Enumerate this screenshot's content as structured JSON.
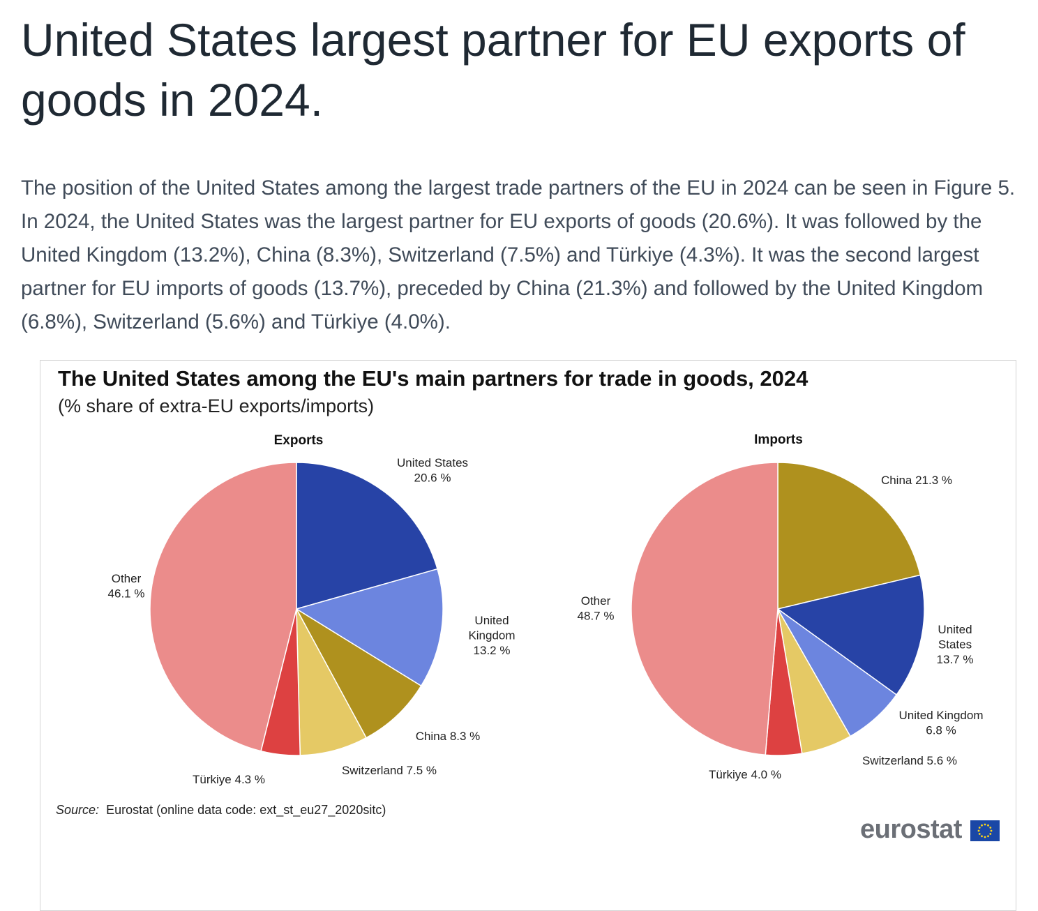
{
  "article": {
    "headline": "United States largest partner for EU exports of goods in 2024.",
    "intro": "The position of the United States among the largest trade partners of the EU in 2024 can be seen in Figure 5. In 2024, the United States was the largest partner for EU exports of goods (20.6%). It was followed by the United Kingdom (13.2%), China (8.3%), Switzerland (7.5%) and Türkiye (4.3%). It was the second largest partner for EU imports of goods (13.7%), preceded by China (21.3%) and followed by the United Kingdom (6.8%), Switzerland (5.6%) and Türkiye (4.0%)."
  },
  "figure": {
    "title": "The United States among the EU's main partners for trade in goods, 2024",
    "subtitle": "(% share of extra-EU exports/imports)",
    "source_label": "Source:",
    "source_text": "Eurostat (online data code: ext_st_eu27_2020sitc)",
    "logo_text": "eurostat"
  },
  "chart_data": [
    {
      "type": "pie",
      "title": "Exports",
      "unit": "%",
      "slices": [
        {
          "label": "United States",
          "value": 20.6,
          "color": "#2743a6"
        },
        {
          "label": "United Kingdom",
          "value": 13.2,
          "color": "#6c85df"
        },
        {
          "label": "China",
          "value": 8.3,
          "color": "#af911e"
        },
        {
          "label": "Switzerland",
          "value": 7.5,
          "color": "#e5c965"
        },
        {
          "label": "Türkiye",
          "value": 4.3,
          "color": "#dd4141"
        },
        {
          "label": "Other",
          "value": 46.1,
          "color": "#eb8c8b"
        }
      ],
      "data_labels": [
        [
          "United States",
          "20.6 %"
        ],
        [
          "United",
          "Kingdom",
          "13.2 %"
        ],
        [
          "China 8.3 %"
        ],
        [
          "Switzerland  7.5 %"
        ],
        [
          "Türkiye 4.3 %"
        ],
        [
          "Other",
          "46.1 %"
        ]
      ]
    },
    {
      "type": "pie",
      "title": "Imports",
      "unit": "%",
      "slices": [
        {
          "label": "China",
          "value": 21.3,
          "color": "#af911e"
        },
        {
          "label": "United States",
          "value": 13.7,
          "color": "#2743a6"
        },
        {
          "label": "United Kingdom",
          "value": 6.8,
          "color": "#6c85df"
        },
        {
          "label": "Switzerland",
          "value": 5.6,
          "color": "#e5c965"
        },
        {
          "label": "Türkiye",
          "value": 4.0,
          "color": "#dd4141"
        },
        {
          "label": "Other",
          "value": 48.7,
          "color": "#eb8c8b"
        }
      ],
      "data_labels": [
        [
          "China 21.3 %"
        ],
        [
          "United",
          "States",
          "13.7 %"
        ],
        [
          "United Kingdom",
          "6.8 %"
        ],
        [
          "Switzerland  5.6 %"
        ],
        [
          "Türkiye 4.0 %"
        ],
        [
          "Other",
          "48.7 %"
        ]
      ]
    }
  ]
}
